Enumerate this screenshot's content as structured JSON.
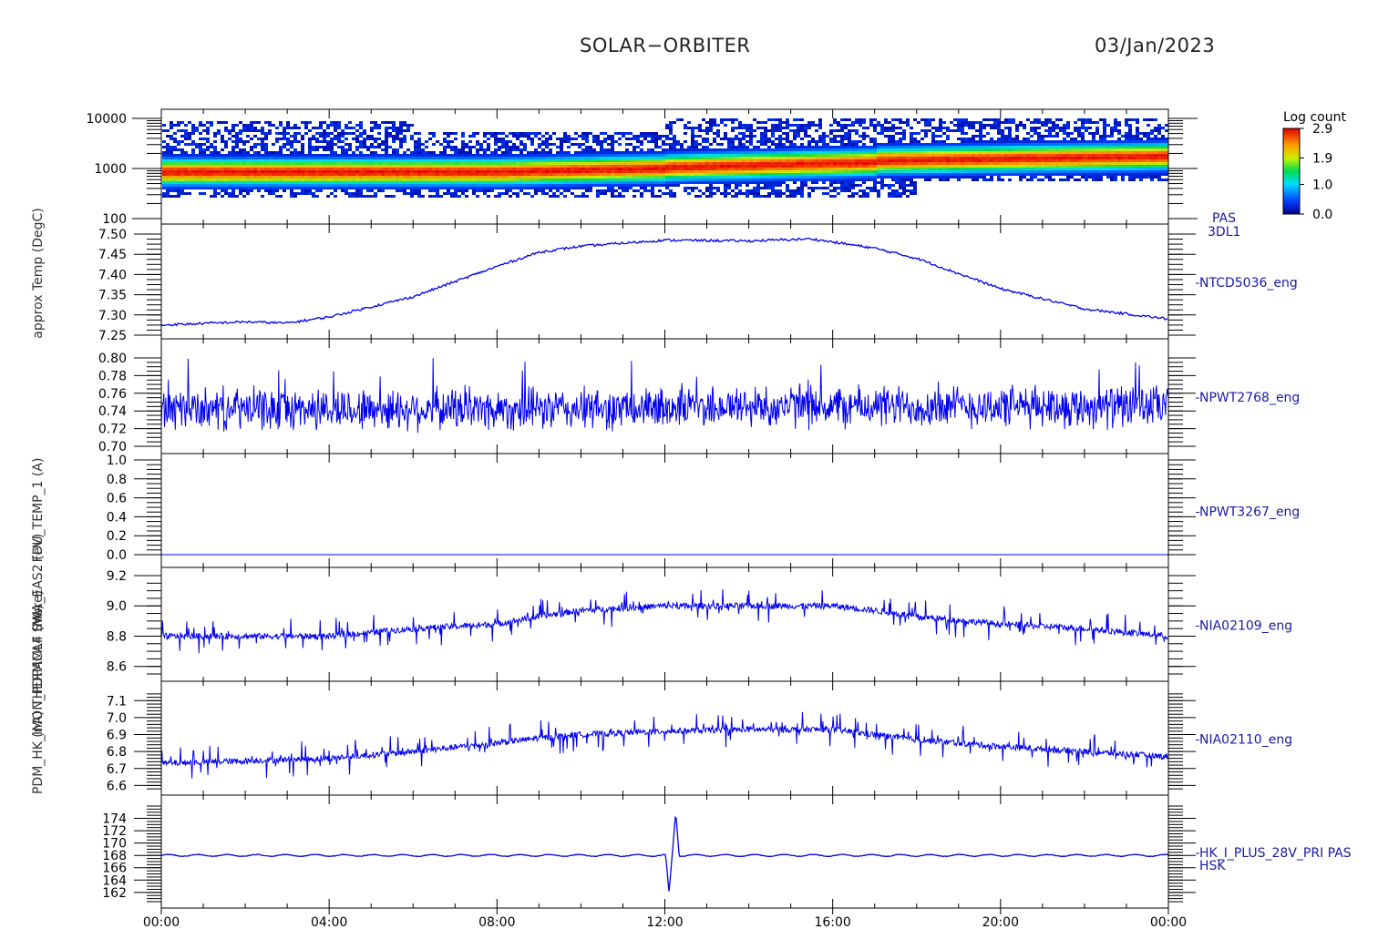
{
  "header": {
    "title": "SOLAR−ORBITER",
    "date": "03/Jan/2023"
  },
  "colors": {
    "trace": "#0000ee",
    "axis": "#000000",
    "label": "#1a1aa6"
  },
  "x_axis": {
    "tick_labels": [
      "00:00",
      "04:00",
      "08:00",
      "12:00",
      "16:00",
      "20:00",
      "00:00"
    ],
    "range_hours": [
      0,
      24
    ]
  },
  "colorbar": {
    "title": "Log count",
    "tick_labels": [
      "2.9",
      "1.9",
      "1.0",
      "0.0"
    ],
    "range": [
      0.0,
      2.9
    ]
  },
  "ylabel_stack": [
    "(nA)",
    "PDM_HK_IMON_PDPAMLF (More)",
    "THERMCA4 (nA)",
    "SWA_EAS2 (eV)",
    "FDU_TEMP_1 (A)",
    "approx Temp (DegC)"
  ],
  "chart_data": [
    {
      "type": "heatmap",
      "instrument": [
        "PAS",
        "3DL1"
      ],
      "ylabel": "(eV)",
      "yscale": "log",
      "ylim": [
        100,
        10000
      ],
      "y_tick_labels": [
        "10000",
        "1000",
        "100"
      ],
      "description_values": {
        "peak_energy_eV_start": 900,
        "peak_energy_eV_end": 1800
      }
    },
    {
      "type": "line",
      "series": [
        {
          "name": "NTCD5036_eng"
        }
      ],
      "ylim": [
        7.25,
        7.5
      ],
      "y_tick_labels": [
        "7.50",
        "7.45",
        "7.40",
        "7.35",
        "7.30",
        "7.25"
      ],
      "x": [
        0,
        2,
        3,
        4,
        6,
        8,
        9,
        10,
        12,
        14,
        15.5,
        17,
        18,
        20,
        22,
        24
      ],
      "values": [
        7.275,
        7.283,
        7.28,
        7.295,
        7.345,
        7.42,
        7.455,
        7.47,
        7.485,
        7.483,
        7.488,
        7.465,
        7.44,
        7.365,
        7.315,
        7.29
      ]
    },
    {
      "type": "line",
      "series": [
        {
          "name": "NPWT2768_eng"
        }
      ],
      "ylim": [
        0.7,
        0.8
      ],
      "y_tick_labels": [
        "0.80",
        "0.78",
        "0.76",
        "0.74",
        "0.72",
        "0.70"
      ],
      "mean": 0.742,
      "spread": 0.028
    },
    {
      "type": "line",
      "series": [
        {
          "name": "NPWT3267_eng"
        }
      ],
      "ylim": [
        0.0,
        1.0
      ],
      "y_tick_labels": [
        "1.0",
        "0.8",
        "0.6",
        "0.4",
        "0.2",
        "0.0"
      ],
      "mean": 0.0
    },
    {
      "type": "line",
      "series": [
        {
          "name": "NIA02109_eng"
        }
      ],
      "ylim": [
        8.55,
        9.2
      ],
      "y_tick_labels": [
        "9.2",
        "9.0",
        "8.8",
        "8.6"
      ],
      "x": [
        0,
        4,
        6,
        8,
        9,
        10,
        12,
        14,
        16,
        17,
        18,
        20,
        22,
        24
      ],
      "values": [
        8.8,
        8.8,
        8.85,
        8.88,
        8.93,
        8.97,
        9.0,
        9.0,
        9.0,
        8.97,
        8.93,
        8.88,
        8.85,
        8.8
      ]
    },
    {
      "type": "line",
      "series": [
        {
          "name": "NIA02110_eng"
        }
      ],
      "ylim": [
        6.57,
        7.15
      ],
      "y_tick_labels": [
        "7.1",
        "7.0",
        "6.9",
        "6.8",
        "6.7",
        "6.6"
      ],
      "x": [
        0,
        4,
        6,
        8,
        9,
        10,
        12,
        14,
        16,
        17,
        18,
        20,
        22,
        24
      ],
      "values": [
        6.73,
        6.76,
        6.8,
        6.85,
        6.88,
        6.9,
        6.92,
        6.93,
        6.93,
        6.9,
        6.87,
        6.83,
        6.8,
        6.77
      ]
    },
    {
      "type": "line",
      "series": [
        {
          "name": "HK_I_PLUS_28V_PRI PAS"
        }
      ],
      "extra_label": "HSK",
      "ylim": [
        160.5,
        176
      ],
      "y_tick_labels": [
        "174",
        "172",
        "170",
        "168",
        "166",
        "164",
        "162"
      ],
      "mean": 168.0,
      "spike": {
        "x_hours": 12.1,
        "min": 162,
        "max": 175
      }
    }
  ]
}
